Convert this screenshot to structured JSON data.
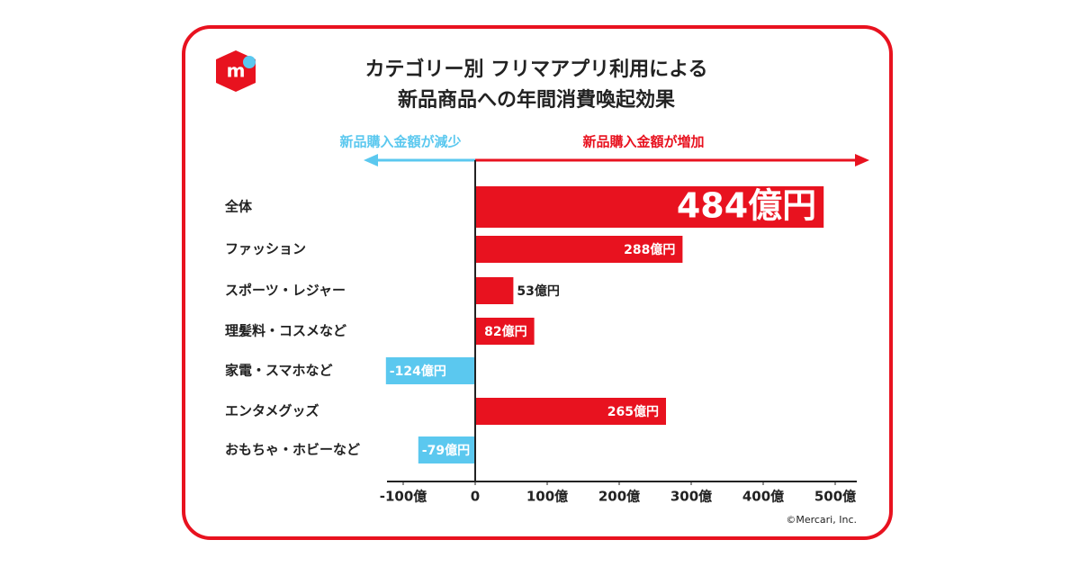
{
  "chart_data": {
    "type": "bar",
    "orientation": "horizontal",
    "title": [
      "カテゴリー別 フリマアプリ利用による",
      "新品商品への年間消費喚起効果"
    ],
    "arrow_left_label": "新品購入金額が減少",
    "arrow_right_label": "新品購入金額が増加",
    "categories": [
      "全体",
      "ファッション",
      "スポーツ・レジャー",
      "理髪料・コスメなど",
      "家電・スマホなど",
      "エンタメグッズ",
      "おもちゃ・ホビーなど"
    ],
    "values": [
      484,
      288,
      53,
      82,
      -124,
      265,
      -79
    ],
    "value_labels": [
      "484億円",
      "288億円",
      "53億円",
      "82億円",
      "-124億円",
      "265億円",
      "-79億円"
    ],
    "color": "#e8121f",
    "negative_color": "#5bc8ef",
    "xlim": [
      -100,
      500
    ],
    "xticks": [
      {
        "value": -100,
        "label": "-100億"
      },
      0,
      {
        "value": 100,
        "label": "100億"
      },
      {
        "value": 200,
        "label": "200億"
      },
      {
        "value": 300,
        "label": "300億"
      },
      {
        "value": 400,
        "label": "400億"
      },
      {
        "value": 500,
        "label": "500億"
      }
    ],
    "credit": "©Mercari, Inc."
  }
}
